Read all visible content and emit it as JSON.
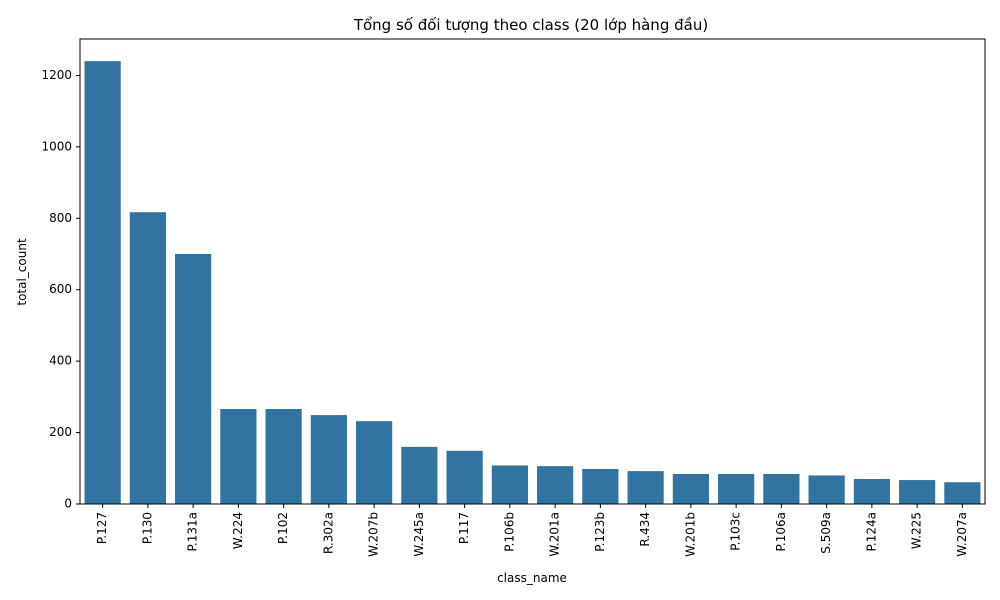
{
  "chart_data": {
    "type": "bar",
    "title": "Tổng số đối tượng theo class (20 lớp hàng đầu)",
    "xlabel": "class_name",
    "ylabel": "total_count",
    "categories": [
      "P.127",
      "P.130",
      "P.131a",
      "W.224",
      "P.102",
      "R.302a",
      "W.207b",
      "W.245a",
      "P.117",
      "P.106b",
      "W.201a",
      "P.123b",
      "R.434",
      "W.201b",
      "P.103c",
      "P.106a",
      "S.509a",
      "P.124a",
      "W.225",
      "W.207a"
    ],
    "values": [
      1240,
      817,
      700,
      266,
      266,
      249,
      232,
      160,
      149,
      108,
      106,
      98,
      92,
      84,
      84,
      84,
      80,
      70,
      67,
      61
    ],
    "ylim": [
      0,
      1302
    ],
    "yticks": [
      0,
      200,
      400,
      600,
      800,
      1000,
      1200
    ],
    "bar_color": "#3274a1",
    "grid": false,
    "legend": "none"
  }
}
